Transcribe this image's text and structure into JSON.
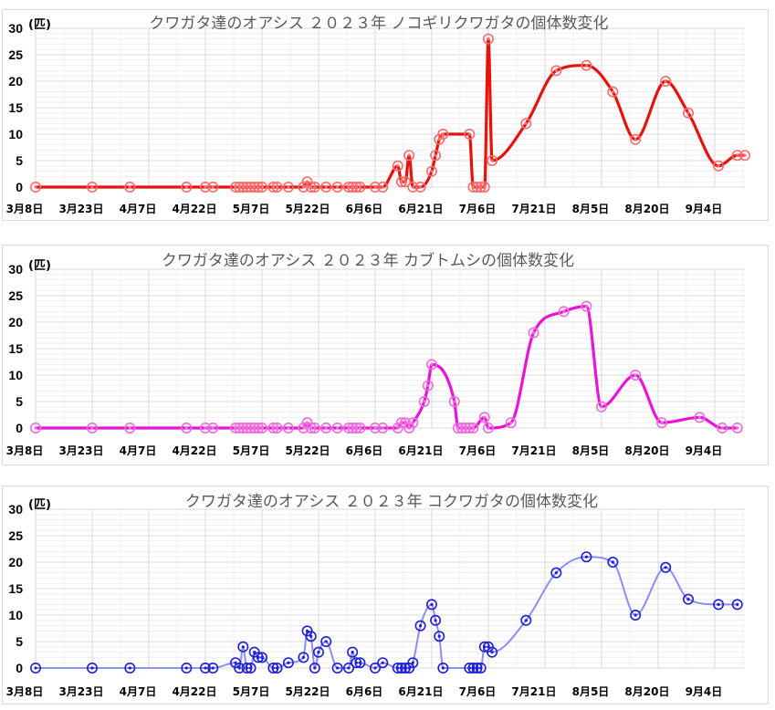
{
  "chart_data": [
    {
      "type": "line",
      "smooth": true,
      "title": "クワガタ達のオアシス ２０２３年 ノコギリクワガタの個体数変化",
      "ylabel": "(匹)",
      "ylim": [
        0,
        30
      ],
      "yticks": [
        0,
        5,
        10,
        15,
        20,
        25,
        30
      ],
      "xlim": [
        "2023-03-08",
        "2023-09-12"
      ],
      "xticks": [
        "2023-03-08",
        "2023-03-23",
        "2023-04-07",
        "2023-04-22",
        "2023-05-07",
        "2023-05-22",
        "2023-06-06",
        "2023-06-21",
        "2023-07-06",
        "2023-07-21",
        "2023-08-05",
        "2023-08-20",
        "2023-09-04"
      ],
      "xtick_labels": [
        "3月8日",
        "3月23日",
        "4月7日",
        "4月22日",
        "5月7日",
        "5月22日",
        "6月6日",
        "6月21日",
        "7月6日",
        "7月21日",
        "8月5日",
        "8月20日",
        "9月4日"
      ],
      "grid": true,
      "legend": "none",
      "color": "#e8120c",
      "marker_color": "#ff6b6b",
      "series": [
        {
          "x": [
            "2023-03-08",
            "2023-03-23",
            "2023-04-02",
            "2023-04-17",
            "2023-04-22",
            "2023-04-24",
            "2023-04-30",
            "2023-05-01",
            "2023-05-02",
            "2023-05-03",
            "2023-05-04",
            "2023-05-05",
            "2023-05-06",
            "2023-05-07",
            "2023-05-10",
            "2023-05-11",
            "2023-05-14",
            "2023-05-18",
            "2023-05-19",
            "2023-05-20",
            "2023-05-21",
            "2023-05-24",
            "2023-05-27",
            "2023-05-30",
            "2023-05-31",
            "2023-06-01",
            "2023-06-02",
            "2023-06-06",
            "2023-06-08",
            "2023-06-12",
            "2023-06-13",
            "2023-06-14",
            "2023-06-15",
            "2023-06-16",
            "2023-06-18",
            "2023-06-21",
            "2023-06-22",
            "2023-06-23",
            "2023-06-24",
            "2023-07-01",
            "2023-07-02",
            "2023-07-03",
            "2023-07-04",
            "2023-07-05",
            "2023-07-06",
            "2023-07-07",
            "2023-07-16",
            "2023-07-24",
            "2023-08-01",
            "2023-08-08",
            "2023-08-14",
            "2023-08-22",
            "2023-08-28",
            "2023-09-05",
            "2023-09-10",
            "2023-09-12"
          ],
          "values": [
            0,
            0,
            0,
            0,
            0,
            0,
            0,
            0,
            0,
            0,
            0,
            0,
            0,
            0,
            0,
            0,
            0,
            0,
            1,
            0,
            0,
            0,
            0,
            0,
            0,
            0,
            0,
            0,
            0,
            4,
            1,
            1,
            6,
            0,
            0,
            3,
            6,
            9,
            10,
            10,
            0,
            0,
            0,
            0,
            28,
            5,
            12,
            22,
            23,
            18,
            9,
            20,
            14,
            4,
            6,
            6
          ]
        }
      ]
    },
    {
      "type": "line",
      "smooth": true,
      "title": "クワガタ達のオアシス ２０２３年 カブトムシの個体数変化",
      "ylabel": "(匹)",
      "ylim": [
        0,
        30
      ],
      "yticks": [
        0,
        5,
        10,
        15,
        20,
        25,
        30
      ],
      "xlim": [
        "2023-03-08",
        "2023-09-12"
      ],
      "xticks": [
        "2023-03-08",
        "2023-03-23",
        "2023-04-07",
        "2023-04-22",
        "2023-05-07",
        "2023-05-22",
        "2023-06-06",
        "2023-06-21",
        "2023-07-06",
        "2023-07-21",
        "2023-08-05",
        "2023-08-20",
        "2023-09-04"
      ],
      "xtick_labels": [
        "3月8日",
        "3月23日",
        "4月7日",
        "4月22日",
        "5月7日",
        "5月22日",
        "6月6日",
        "6月21日",
        "7月6日",
        "7月21日",
        "8月5日",
        "8月20日",
        "9月4日"
      ],
      "grid": true,
      "legend": "none",
      "color": "#e815d6",
      "marker_color": "#ef6bdf",
      "series": [
        {
          "x": [
            "2023-03-08",
            "2023-03-23",
            "2023-04-02",
            "2023-04-17",
            "2023-04-22",
            "2023-04-24",
            "2023-04-30",
            "2023-05-01",
            "2023-05-02",
            "2023-05-03",
            "2023-05-04",
            "2023-05-05",
            "2023-05-06",
            "2023-05-07",
            "2023-05-10",
            "2023-05-11",
            "2023-05-14",
            "2023-05-18",
            "2023-05-19",
            "2023-05-20",
            "2023-05-21",
            "2023-05-24",
            "2023-05-27",
            "2023-05-30",
            "2023-05-31",
            "2023-06-01",
            "2023-06-02",
            "2023-06-06",
            "2023-06-08",
            "2023-06-12",
            "2023-06-13",
            "2023-06-14",
            "2023-06-15",
            "2023-06-16",
            "2023-06-19",
            "2023-06-20",
            "2023-06-21",
            "2023-06-27",
            "2023-06-28",
            "2023-06-29",
            "2023-06-30",
            "2023-07-01",
            "2023-07-02",
            "2023-07-05",
            "2023-07-06",
            "2023-07-12",
            "2023-07-18",
            "2023-07-26",
            "2023-08-01",
            "2023-08-05",
            "2023-08-14",
            "2023-08-21",
            "2023-08-31",
            "2023-09-06",
            "2023-09-10"
          ],
          "values": [
            0,
            0,
            0,
            0,
            0,
            0,
            0,
            0,
            0,
            0,
            0,
            0,
            0,
            0,
            0,
            0,
            0,
            0,
            1,
            0,
            0,
            0,
            0,
            0,
            0,
            0,
            0,
            0,
            0,
            0,
            1,
            1,
            0,
            1,
            5,
            8,
            12,
            5,
            0,
            0,
            0,
            0,
            0,
            2,
            0,
            1,
            18,
            22,
            23,
            4,
            10,
            1,
            2,
            0,
            0
          ]
        }
      ]
    },
    {
      "type": "line",
      "smooth": true,
      "title": "クワガタ達のオアシス ２０２３年 コクワガタの個体数変化",
      "ylabel": "(匹)",
      "ylim": [
        0,
        30
      ],
      "yticks": [
        0,
        5,
        10,
        15,
        20,
        25,
        30
      ],
      "xlim": [
        "2023-03-08",
        "2023-09-12"
      ],
      "xticks": [
        "2023-03-08",
        "2023-03-23",
        "2023-04-07",
        "2023-04-22",
        "2023-05-07",
        "2023-05-22",
        "2023-06-06",
        "2023-06-21",
        "2023-07-06",
        "2023-07-21",
        "2023-08-05",
        "2023-08-20",
        "2023-09-04"
      ],
      "xtick_labels": [
        "3月8日",
        "3月23日",
        "4月7日",
        "4月22日",
        "5月7日",
        "5月22日",
        "6月6日",
        "6月21日",
        "7月6日",
        "7月21日",
        "8月5日",
        "8月20日",
        "9月4日"
      ],
      "grid": true,
      "legend": "none",
      "color": "#8b8ff0",
      "marker_color": "#1f1fd6",
      "series": [
        {
          "x": [
            "2023-03-08",
            "2023-03-23",
            "2023-04-02",
            "2023-04-17",
            "2023-04-22",
            "2023-04-24",
            "2023-04-30",
            "2023-05-01",
            "2023-05-02",
            "2023-05-03",
            "2023-05-04",
            "2023-05-05",
            "2023-05-06",
            "2023-05-07",
            "2023-05-10",
            "2023-05-11",
            "2023-05-14",
            "2023-05-18",
            "2023-05-19",
            "2023-05-20",
            "2023-05-21",
            "2023-05-22",
            "2023-05-24",
            "2023-05-27",
            "2023-05-30",
            "2023-05-31",
            "2023-06-01",
            "2023-06-02",
            "2023-06-06",
            "2023-06-08",
            "2023-06-12",
            "2023-06-13",
            "2023-06-14",
            "2023-06-15",
            "2023-06-16",
            "2023-06-18",
            "2023-06-21",
            "2023-06-22",
            "2023-06-23",
            "2023-06-24",
            "2023-07-01",
            "2023-07-02",
            "2023-07-03",
            "2023-07-04",
            "2023-07-05",
            "2023-07-06",
            "2023-07-07",
            "2023-07-16",
            "2023-07-24",
            "2023-08-01",
            "2023-08-08",
            "2023-08-14",
            "2023-08-22",
            "2023-08-28",
            "2023-09-05",
            "2023-09-10"
          ],
          "values": [
            0,
            0,
            0,
            0,
            0,
            0,
            1,
            0,
            4,
            0,
            0,
            3,
            2,
            2,
            0,
            0,
            1,
            2,
            7,
            6,
            0,
            3,
            5,
            0,
            0,
            3,
            1,
            1,
            0,
            1,
            0,
            0,
            0,
            0,
            1,
            8,
            12,
            9,
            6,
            0,
            0,
            0,
            0,
            0,
            4,
            4,
            3,
            9,
            18,
            21,
            20,
            10,
            19,
            13,
            12,
            12
          ]
        }
      ]
    }
  ]
}
